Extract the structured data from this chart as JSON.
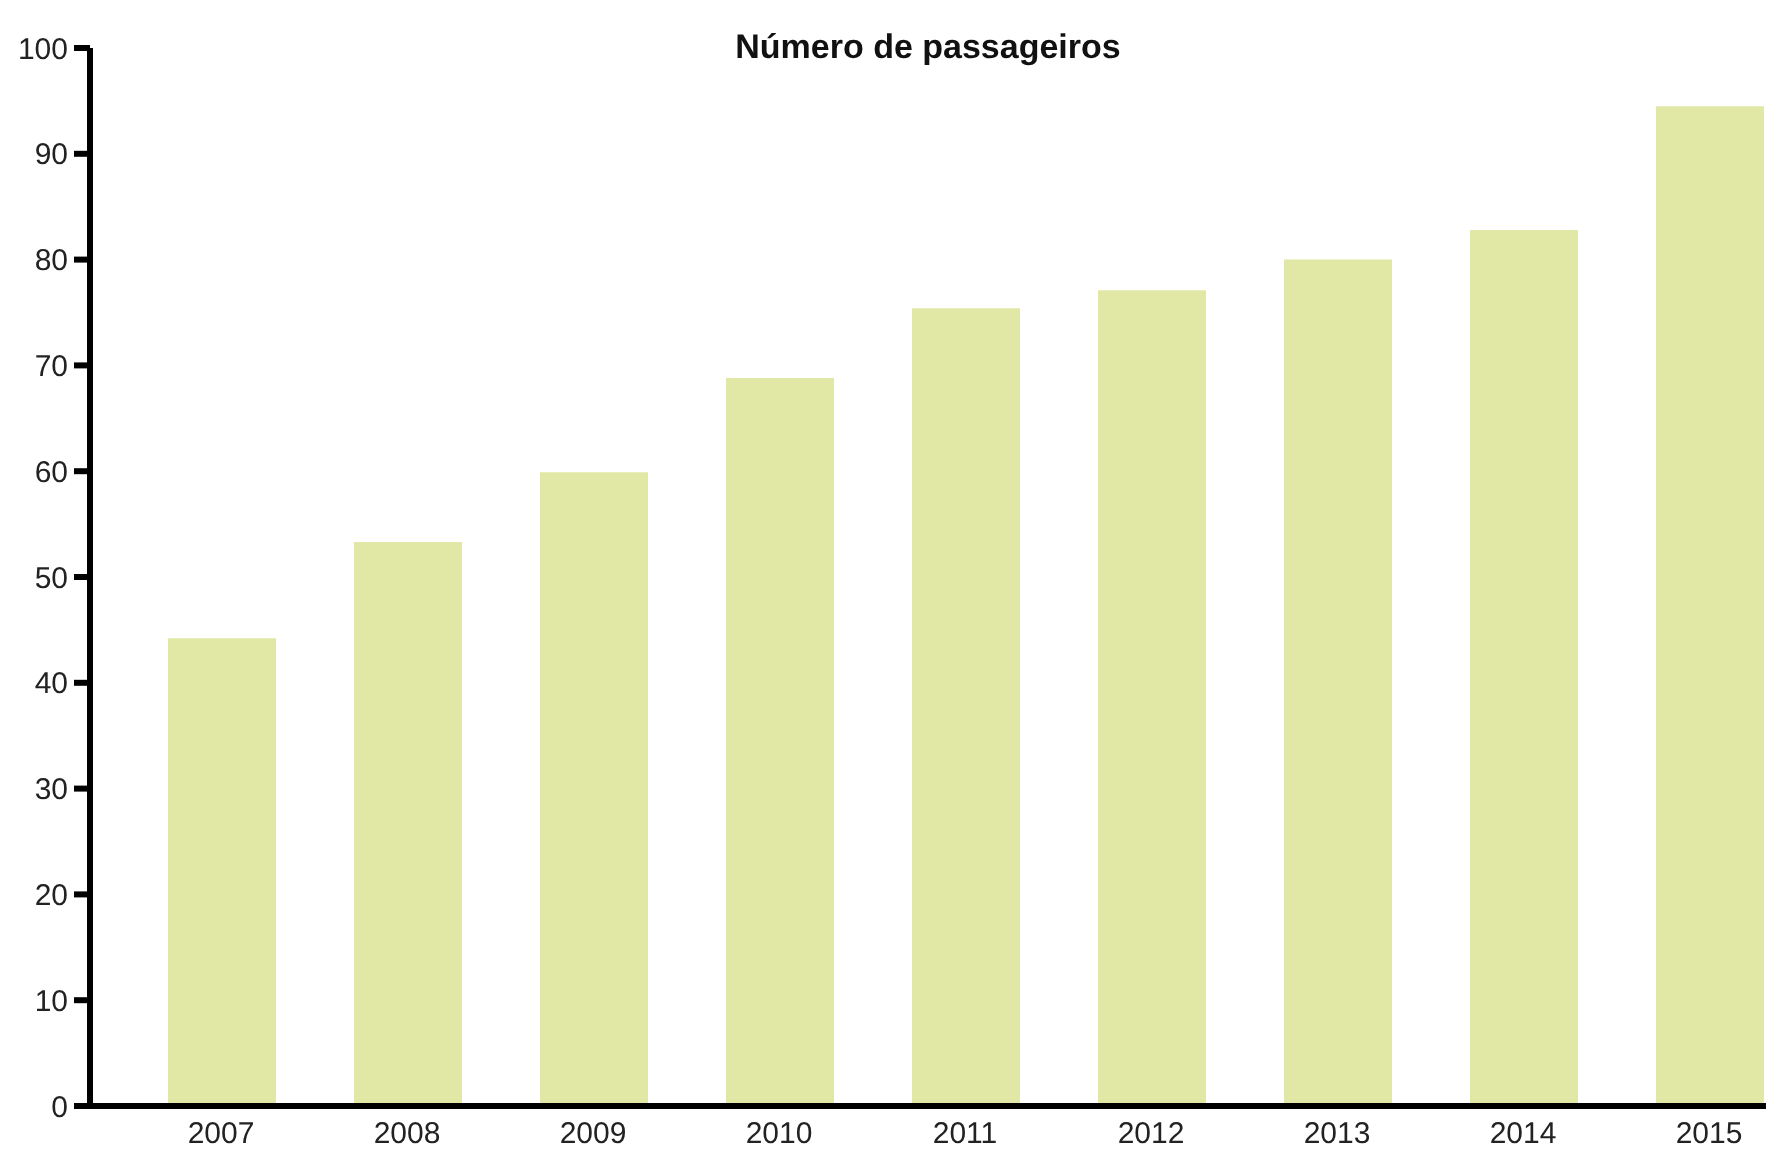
{
  "chart_data": {
    "type": "bar",
    "title": "Número de passageiros",
    "categories": [
      "2007",
      "2008",
      "2009",
      "2010",
      "2011",
      "2012",
      "2013",
      "2014",
      "2015"
    ],
    "values": [
      44.2,
      53.3,
      59.9,
      68.8,
      75.4,
      77.1,
      80.0,
      82.8,
      94.5
    ],
    "color": "#e1e8a5",
    "ylim": [
      0,
      100
    ],
    "yticks": [
      0,
      10,
      20,
      30,
      40,
      50,
      60,
      70,
      80,
      90,
      100
    ],
    "grid": false
  }
}
